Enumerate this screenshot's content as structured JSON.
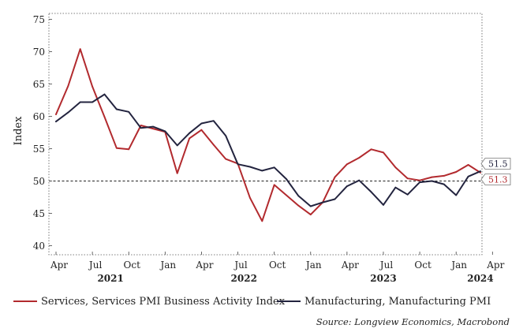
{
  "chart_data": {
    "type": "line",
    "title": "",
    "ylabel": "Index",
    "ylim": [
      40,
      76
    ],
    "yticks": [
      40,
      45,
      50,
      55,
      60,
      65,
      70,
      75
    ],
    "reference_line": 50,
    "x_tick_labels": [
      "Apr",
      "Jul",
      "Oct",
      "Jan",
      "Apr",
      "Jul",
      "Oct",
      "Jan",
      "Apr",
      "Jul",
      "Oct",
      "Jan",
      "Apr"
    ],
    "x_tick_months": [
      0,
      3,
      6,
      9,
      12,
      15,
      18,
      21,
      24,
      27,
      30,
      33,
      36
    ],
    "year_labels": [
      {
        "label": "2021",
        "month": 4.5
      },
      {
        "label": "2022",
        "month": 15.5
      },
      {
        "label": "2023",
        "month": 27
      },
      {
        "label": "2024",
        "month": 35
      }
    ],
    "series": [
      {
        "name": "Services, Services PMI Business Activity Index",
        "color": "#b22a2e",
        "start_month": 0,
        "values": [
          60.3,
          64.7,
          70.4,
          64.6,
          59.9,
          55.1,
          54.9,
          58.6,
          58.1,
          57.6,
          51.2,
          56.6,
          57.9,
          55.6,
          53.4,
          52.7,
          47.4,
          43.8,
          49.4,
          47.8,
          46.2,
          44.8,
          46.7,
          50.6,
          52.6,
          53.6,
          54.9,
          54.4,
          52.1,
          50.4,
          50.1,
          50.6,
          50.8,
          51.4,
          52.5,
          51.3
        ]
      },
      {
        "name": "Manufacturing, Manufacturing PMI",
        "color": "#23243f",
        "start_month": 0,
        "values": [
          59.2,
          60.6,
          62.2,
          62.2,
          63.4,
          61.1,
          60.7,
          58.2,
          58.4,
          57.7,
          55.5,
          57.4,
          58.9,
          59.3,
          57.0,
          52.6,
          52.2,
          51.6,
          52.1,
          50.3,
          47.7,
          46.1,
          46.7,
          47.2,
          49.2,
          50.1,
          48.3,
          46.3,
          49.0,
          47.9,
          49.8,
          50.0,
          49.5,
          47.8,
          50.7,
          51.5
        ]
      }
    ],
    "end_labels": [
      {
        "series": 1,
        "text": "51.5",
        "color": "#23243f"
      },
      {
        "series": 0,
        "text": "51.3",
        "color": "#b22a2e"
      }
    ],
    "legend_position": "bottom",
    "source": "Source: Longview Economics, Macrobond"
  }
}
